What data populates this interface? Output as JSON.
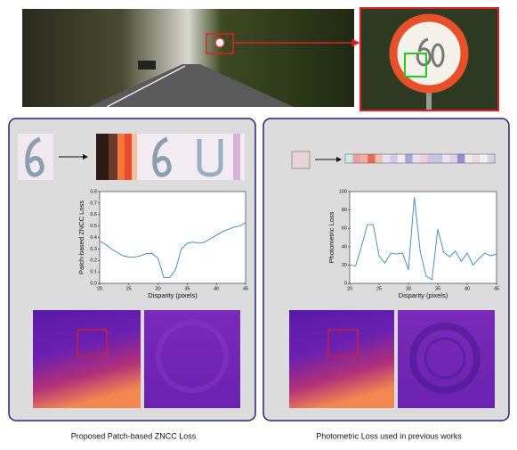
{
  "chart_data": [
    {
      "type": "line",
      "ylabel": "Patch-based ZNCC Loss",
      "xlabel": "Disparity (pixels)",
      "color": "#3a86b8",
      "x": [
        20,
        21,
        22,
        23,
        24,
        25,
        26,
        27,
        28,
        29,
        30,
        31,
        32,
        33,
        34,
        35,
        36,
        37,
        38,
        39,
        40,
        41,
        42,
        43,
        44,
        45
      ],
      "values": [
        0.37,
        0.34,
        0.3,
        0.27,
        0.24,
        0.23,
        0.23,
        0.24,
        0.26,
        0.26,
        0.22,
        0.05,
        0.05,
        0.12,
        0.3,
        0.35,
        0.36,
        0.35,
        0.36,
        0.39,
        0.42,
        0.45,
        0.47,
        0.49,
        0.5,
        0.53
      ],
      "xlim": [
        20,
        45
      ],
      "xticks": [
        20,
        25,
        30,
        35,
        40,
        45
      ],
      "ylim": [
        0,
        0.8
      ],
      "yticks": [
        {
          "value": 0,
          "label": "0.0"
        },
        0.1,
        0.2,
        0.3,
        0.4,
        0.5,
        0.6,
        0.7,
        0.8
      ]
    },
    {
      "type": "line",
      "ylabel": "Photometric Loss",
      "xlabel": "Disparity (pixels)",
      "color": "#3a86b8",
      "x": [
        20,
        21,
        22,
        23,
        24,
        25,
        26,
        27,
        28,
        29,
        30,
        31,
        32,
        33,
        34,
        35,
        36,
        37,
        38,
        39,
        40,
        41,
        42,
        43,
        44,
        45
      ],
      "values": [
        20,
        19,
        40,
        64,
        64,
        30,
        22,
        33,
        32,
        33,
        15,
        94,
        35,
        8,
        4,
        59,
        34,
        29,
        35,
        24,
        33,
        20,
        27,
        33,
        30,
        32
      ],
      "xlim": [
        20,
        45
      ],
      "xticks": [
        20,
        25,
        30,
        35,
        40,
        45
      ],
      "ylim": [
        0,
        100
      ],
      "yticks": [
        0,
        20,
        40,
        60,
        80,
        100
      ]
    }
  ],
  "captions": [
    "Proposed Patch-based ZNCC Loss",
    "Photometric Loss used in previous works"
  ]
}
